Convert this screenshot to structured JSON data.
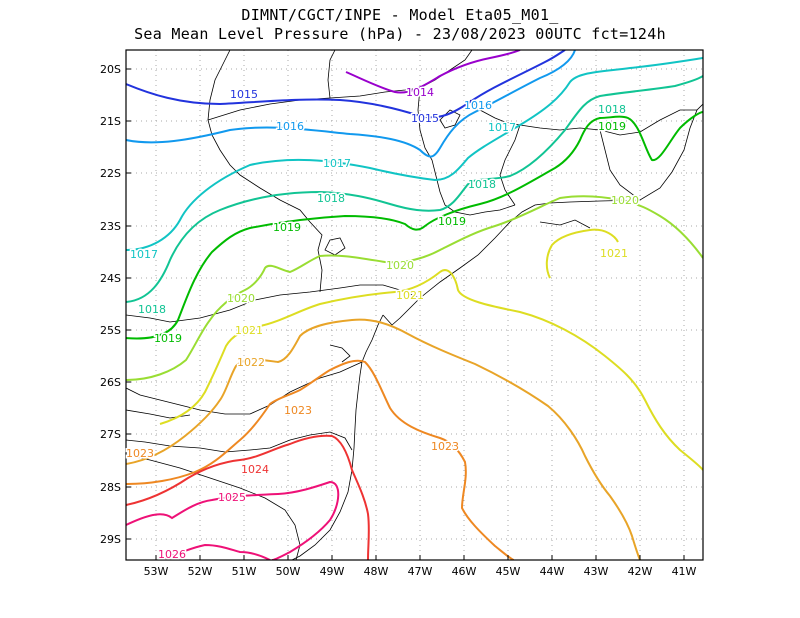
{
  "header": {
    "line1": "DIMNT/CGCT/INPE -  Model Eta05_M01_",
    "line2": "Sea Mean Level Pressure (hPa) - 23/08/2023 00UTC fct=124h"
  },
  "axes": {
    "lat_labels": [
      "20S",
      "21S",
      "22S",
      "23S",
      "24S",
      "25S",
      "26S",
      "27S",
      "28S",
      "29S"
    ],
    "lon_labels": [
      "53W",
      "52W",
      "51W",
      "50W",
      "49W",
      "48W",
      "47W",
      "46W",
      "45W",
      "44W",
      "43W",
      "42W",
      "41W"
    ]
  },
  "contour_labels": [
    {
      "text": "1014",
      "color": "#9900cc"
    },
    {
      "text": "1015",
      "color": "#2233dd"
    },
    {
      "text": "1015",
      "color": "#2233dd"
    },
    {
      "text": "1016",
      "color": "#1199ee"
    },
    {
      "text": "1016",
      "color": "#1199ee"
    },
    {
      "text": "1017",
      "color": "#11c4c4"
    },
    {
      "text": "1017",
      "color": "#11c4c4"
    },
    {
      "text": "1017",
      "color": "#11c4c4"
    },
    {
      "text": "1018",
      "color": "#11c494"
    },
    {
      "text": "1018",
      "color": "#11c494"
    },
    {
      "text": "1018",
      "color": "#11c494"
    },
    {
      "text": "1018",
      "color": "#11c494"
    },
    {
      "text": "1019",
      "color": "#00bb00"
    },
    {
      "text": "1019",
      "color": "#00bb00"
    },
    {
      "text": "1019",
      "color": "#00bb00"
    },
    {
      "text": "1019",
      "color": "#00bb00"
    },
    {
      "text": "1020",
      "color": "#99dd33"
    },
    {
      "text": "1020",
      "color": "#99dd33"
    },
    {
      "text": "1020",
      "color": "#99dd33"
    },
    {
      "text": "1021",
      "color": "#dddd22"
    },
    {
      "text": "1021",
      "color": "#dddd22"
    },
    {
      "text": "1021",
      "color": "#dddd22"
    },
    {
      "text": "1022",
      "color": "#e8a428"
    },
    {
      "text": "1023",
      "color": "#ee8822"
    },
    {
      "text": "1023",
      "color": "#ee8822"
    },
    {
      "text": "1023",
      "color": "#ee8822"
    },
    {
      "text": "1024",
      "color": "#ee3333"
    },
    {
      "text": "1025",
      "color": "#ee1177"
    },
    {
      "text": "1026",
      "color": "#ee1177"
    }
  ]
}
